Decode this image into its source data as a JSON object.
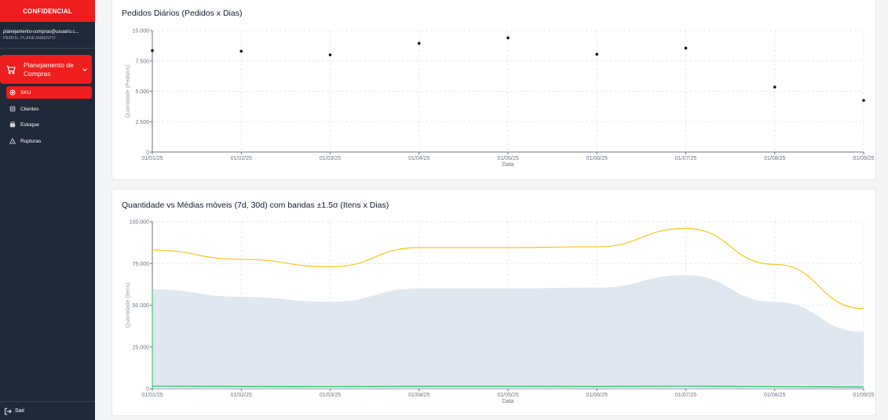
{
  "sidebar": {
    "brand": "CONFIDENCIAL",
    "user_email": "planejamento-compras@usuario.c...",
    "user_profile": "PERFIL: PLANEJAMENTO",
    "group_label": "Planejamento de Compras",
    "items": [
      {
        "label": "SKU",
        "icon": "sku-icon",
        "active": true
      },
      {
        "label": "Clientes",
        "icon": "clients-icon",
        "active": false
      },
      {
        "label": "Estoque",
        "icon": "stock-icon",
        "active": false
      },
      {
        "label": "Rupturas",
        "icon": "warning-icon",
        "active": false
      }
    ],
    "logout_label": "Sair"
  },
  "colors": {
    "accent": "#ef1d1d",
    "sidebar_bg": "#1f2937",
    "band_fill": "#dbe4ee",
    "ma30_line": "#f5c518",
    "quantity_line": "#22c55e"
  },
  "chart_data": [
    {
      "type": "scatter",
      "title": "Pedidos Diários (Pedidos x Dias)",
      "xlabel": "Data",
      "ylabel": "Quantidade (Pedidos)",
      "x_ticks": [
        "01/01/25",
        "01/02/25",
        "01/03/25",
        "01/04/25",
        "01/05/25",
        "01/06/25",
        "01/07/25",
        "01/08/25",
        "01/09/25"
      ],
      "y_ticks": [
        "0",
        "2.500",
        "5.000",
        "7.500",
        "10.000"
      ],
      "ylim": [
        0,
        10000
      ],
      "grid": true,
      "points": [
        {
          "x": "01/01/25",
          "y": 8350
        },
        {
          "x": "01/02/25",
          "y": 8300
        },
        {
          "x": "01/03/25",
          "y": 8000
        },
        {
          "x": "01/04/25",
          "y": 8950
        },
        {
          "x": "01/05/25",
          "y": 9400
        },
        {
          "x": "01/06/25",
          "y": 8050
        },
        {
          "x": "01/07/25",
          "y": 8550
        },
        {
          "x": "01/08/25",
          "y": 5350
        },
        {
          "x": "01/09/25",
          "y": 4250
        }
      ]
    },
    {
      "type": "area",
      "title": "Quantidade vs Médias móveis (7d, 30d) com bandas ±1.5σ (Itens x Dias)",
      "xlabel": "Data",
      "ylabel": "Quantidade (Itens)",
      "x_ticks": [
        "01/01/25",
        "01/02/25",
        "01/03/25",
        "01/04/25",
        "01/05/25",
        "01/06/25",
        "01/07/25",
        "01/08/25",
        "01/09/25"
      ],
      "y_ticks": [
        "0",
        "25.000",
        "50.000",
        "75.000",
        "100.000"
      ],
      "ylim": [
        0,
        100000
      ],
      "grid": true,
      "x": [
        "01/01/25",
        "01/02/25",
        "01/03/25",
        "01/04/25",
        "01/05/25",
        "01/06/25",
        "01/07/25",
        "01/08/25",
        "01/09/25"
      ],
      "series": [
        {
          "kind": "band",
          "values": [
            59500,
            55000,
            52000,
            60000,
            60000,
            60500,
            68000,
            52000,
            34000
          ]
        },
        {
          "kind": "line",
          "color": "#f5c518",
          "values": [
            83000,
            77500,
            73000,
            84500,
            84500,
            85000,
            96000,
            74500,
            48000
          ]
        },
        {
          "kind": "line",
          "color": "#22c55e",
          "values": [
            1500,
            1300,
            1200,
            1400,
            1400,
            1300,
            1500,
            1200,
            1000
          ]
        }
      ]
    }
  ]
}
